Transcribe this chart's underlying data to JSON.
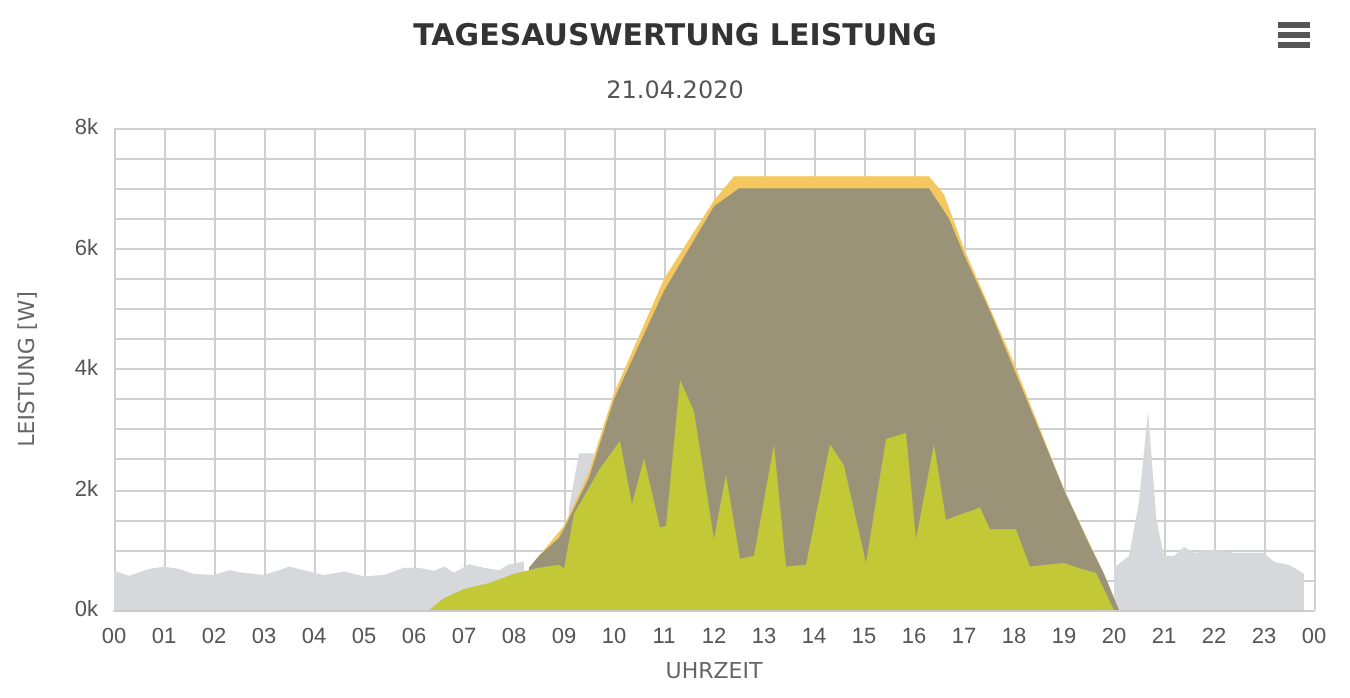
{
  "chart_data": {
    "type": "area",
    "title": "TAGESAUSWERTUNG LEISTUNG",
    "subtitle": "21.04.2020",
    "xlabel": "UHRZEIT",
    "ylabel": "LEISTUNG [W]",
    "xlim": [
      0,
      24
    ],
    "xticks": [
      {
        "value": 0,
        "label": "00"
      },
      {
        "value": 1,
        "label": "01"
      },
      {
        "value": 2,
        "label": "02"
      },
      {
        "value": 3,
        "label": "03"
      },
      {
        "value": 4,
        "label": "04"
      },
      {
        "value": 5,
        "label": "05"
      },
      {
        "value": 6,
        "label": "06"
      },
      {
        "value": 7,
        "label": "07"
      },
      {
        "value": 8,
        "label": "08"
      },
      {
        "value": 9,
        "label": "09"
      },
      {
        "value": 10,
        "label": "10"
      },
      {
        "value": 11,
        "label": "11"
      },
      {
        "value": 12,
        "label": "12"
      },
      {
        "value": 13,
        "label": "13"
      },
      {
        "value": 14,
        "label": "14"
      },
      {
        "value": 15,
        "label": "15"
      },
      {
        "value": 16,
        "label": "16"
      },
      {
        "value": 17,
        "label": "17"
      },
      {
        "value": 18,
        "label": "18"
      },
      {
        "value": 19,
        "label": "19"
      },
      {
        "value": 20,
        "label": "20"
      },
      {
        "value": 21,
        "label": "21"
      },
      {
        "value": 22,
        "label": "22"
      },
      {
        "value": 23,
        "label": "23"
      },
      {
        "value": 24,
        "label": "00"
      }
    ],
    "ylim": [
      0,
      8000
    ],
    "yticks": [
      {
        "value": 0,
        "label": "0k"
      },
      {
        "value": 500,
        "label": null
      },
      {
        "value": 1000,
        "label": null
      },
      {
        "value": 1500,
        "label": null
      },
      {
        "value": 2000,
        "label": "2k"
      },
      {
        "value": 2500,
        "label": null
      },
      {
        "value": 3000,
        "label": null
      },
      {
        "value": 3500,
        "label": null
      },
      {
        "value": 4000,
        "label": "4k"
      },
      {
        "value": 4500,
        "label": null
      },
      {
        "value": 5000,
        "label": null
      },
      {
        "value": 5500,
        "label": null
      },
      {
        "value": 6000,
        "label": "6k"
      },
      {
        "value": 6500,
        "label": null
      },
      {
        "value": 7000,
        "label": null
      },
      {
        "value": 7500,
        "label": null
      },
      {
        "value": 8000,
        "label": "8k"
      }
    ],
    "grid": true,
    "marker": "none",
    "series": [
      {
        "color": "#d6d8db",
        "x": [
          0,
          0.3,
          0.7,
          1.0,
          1.3,
          1.6,
          2.0,
          2.3,
          2.6,
          3.0,
          3.3,
          3.5,
          3.8,
          4.2,
          4.6,
          5.0,
          5.4,
          5.8,
          6.1,
          6.4,
          6.6,
          6.8,
          7.1,
          7.4,
          7.7,
          7.9,
          8.2,
          8.6,
          9.1,
          9.3,
          9.6,
          9.8,
          20.0,
          20.3,
          20.5,
          20.68,
          20.85,
          21.0,
          21.2,
          21.4,
          21.6,
          22.0,
          22.4,
          22.8,
          23.0,
          23.2,
          23.5,
          23.8
        ],
        "values": [
          650,
          570,
          680,
          720,
          680,
          600,
          580,
          660,
          620,
          580,
          660,
          720,
          660,
          580,
          640,
          560,
          580,
          700,
          700,
          650,
          720,
          620,
          760,
          700,
          660,
          760,
          800,
          null,
          1700,
          2600,
          2600,
          null,
          700,
          900,
          1800,
          3300,
          1500,
          900,
          900,
          1050,
          950,
          1000,
          950,
          950,
          950,
          800,
          750,
          600
        ]
      },
      {
        "color": "#f4c85e",
        "x": [
          8.3,
          9.0,
          9.5,
          10.0,
          11.0,
          12.0,
          12.4,
          16.3,
          16.6,
          17.0,
          18.0,
          19.0,
          19.8,
          20.1
        ],
        "values": [
          700,
          1400,
          2300,
          3600,
          5500,
          6800,
          7200,
          7200,
          6900,
          6000,
          4100,
          2000,
          600,
          0
        ]
      },
      {
        "color": "#9b9378",
        "x": [
          8.3,
          8.5,
          8.9,
          9.0,
          9.5,
          10.0,
          10.5,
          11.0,
          11.5,
          12.0,
          12.5,
          16.3,
          16.7,
          17.0,
          17.5,
          18.0,
          18.5,
          19.0,
          19.5,
          19.8,
          20.1
        ],
        "values": [
          700,
          900,
          1200,
          1350,
          2200,
          3500,
          4400,
          5300,
          6000,
          6700,
          7000,
          7000,
          6500,
          5900,
          5000,
          4000,
          3000,
          2000,
          1100,
          600,
          0
        ]
      },
      {
        "color": "#c3c936",
        "x": [
          6.3,
          6.6,
          7.0,
          7.5,
          8.0,
          8.5,
          8.9,
          9.0,
          9.2,
          9.72,
          10.12,
          10.36,
          10.6,
          10.92,
          11.04,
          11.32,
          11.6,
          12.0,
          12.24,
          12.52,
          12.8,
          13.2,
          13.44,
          13.84,
          14.32,
          14.6,
          15.04,
          15.44,
          15.84,
          16.04,
          16.4,
          16.64,
          17.32,
          17.52,
          18.04,
          18.32,
          19.0,
          19.32,
          19.64,
          20.0
        ],
        "values": [
          0,
          200,
          350,
          450,
          600,
          700,
          750,
          690,
          1600,
          2350,
          2810,
          1760,
          2520,
          1370,
          1400,
          3820,
          3300,
          1180,
          2250,
          850,
          900,
          2750,
          720,
          750,
          2750,
          2400,
          780,
          2840,
          2940,
          1180,
          2750,
          1500,
          1700,
          1340,
          1340,
          720,
          780,
          690,
          620,
          0
        ]
      }
    ]
  }
}
